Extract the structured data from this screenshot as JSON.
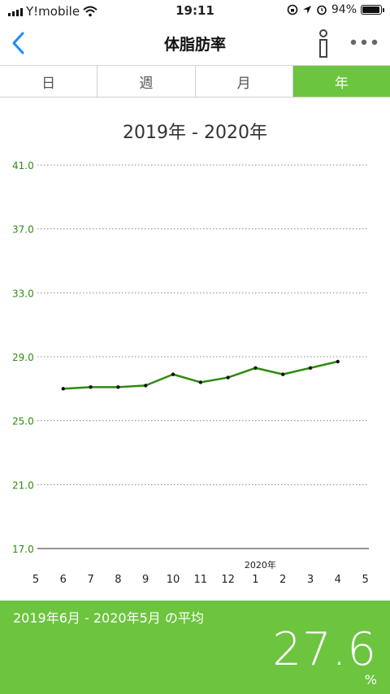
{
  "status_bar": {
    "carrier": "Y!mobile",
    "time": "19:11",
    "battery": "94%",
    "battery_level": 0.94
  },
  "nav": {
    "title": "体脂肪率"
  },
  "tabs": [
    {
      "label": "日",
      "active": false
    },
    {
      "label": "週",
      "active": false
    },
    {
      "label": "月",
      "active": false
    },
    {
      "label": "年",
      "active": true
    }
  ],
  "colors": {
    "accent": "#6cc43f",
    "line": "#2e8b10",
    "axis_label": "#2e8b10",
    "ios_blue": "#1a8cff"
  },
  "chart_data": {
    "type": "line",
    "title": "2019年 - 2020年",
    "x_tick_labels": [
      "5",
      "6",
      "7",
      "8",
      "9",
      "10",
      "11",
      "12",
      "1",
      "2",
      "3",
      "4",
      "5"
    ],
    "x_year_marker": {
      "label": "2020年",
      "at_tick": "1"
    },
    "y_tick_labels": [
      "41.0",
      "37.0",
      "33.0",
      "29.0",
      "25.0",
      "21.0",
      "17.0"
    ],
    "ylim": [
      17,
      41
    ],
    "grid": "dotted horizontal",
    "series": [
      {
        "x": [
          "6",
          "7",
          "8",
          "9",
          "10",
          "11",
          "12",
          "1",
          "2",
          "3",
          "4"
        ],
        "values": [
          27.0,
          27.1,
          27.1,
          27.2,
          27.9,
          27.4,
          27.7,
          28.3,
          27.9,
          28.3,
          28.7
        ]
      }
    ]
  },
  "summary": {
    "label": "2019年6月 - 2020年5月 の平均",
    "value": "27.6",
    "unit": "%"
  }
}
